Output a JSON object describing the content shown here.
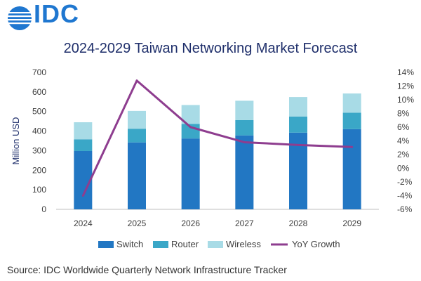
{
  "header": {
    "logo_text": "IDC"
  },
  "chart_data": {
    "type": "bar",
    "stacked": true,
    "title": "2024-2029 Taiwan Networking Market Forecast",
    "xlabel": "",
    "ylabel": "Million USD",
    "ylim": [
      0,
      700
    ],
    "y_ticks": [
      0,
      100,
      200,
      300,
      400,
      500,
      600,
      700
    ],
    "y2_ticks": [
      -6,
      -4,
      -2,
      0,
      2,
      4,
      6,
      8,
      10,
      12,
      14
    ],
    "y2_tick_labels": [
      "-6%",
      "-4%",
      "-2%",
      "0%",
      "2%",
      "4%",
      "6%",
      "8%",
      "10%",
      "12%",
      "14%"
    ],
    "y2lim": [
      -6,
      14
    ],
    "categories": [
      "2024",
      "2025",
      "2026",
      "2027",
      "2028",
      "2029"
    ],
    "series": [
      {
        "name": "Switch",
        "values": [
          298,
          342,
          362,
          378,
          392,
          410
        ],
        "color": "#2277c3",
        "kind": "bar"
      },
      {
        "name": "Router",
        "values": [
          60,
          70,
          75,
          78,
          82,
          84
        ],
        "color": "#3aa7c7",
        "kind": "bar"
      },
      {
        "name": "Wireless",
        "values": [
          87,
          91,
          96,
          99,
          100,
          98
        ],
        "color": "#a8dbe6",
        "kind": "bar"
      },
      {
        "name": "YoY Growth",
        "values": [
          -4.0,
          12.8,
          6.0,
          3.8,
          3.4,
          3.1
        ],
        "color": "#8e3d8f",
        "kind": "line",
        "axis": "right"
      }
    ],
    "legend_position": "bottom",
    "grid": false
  },
  "footer": {
    "source": "Source: IDC Worldwide Quarterly Network Infrastructure Tracker"
  }
}
